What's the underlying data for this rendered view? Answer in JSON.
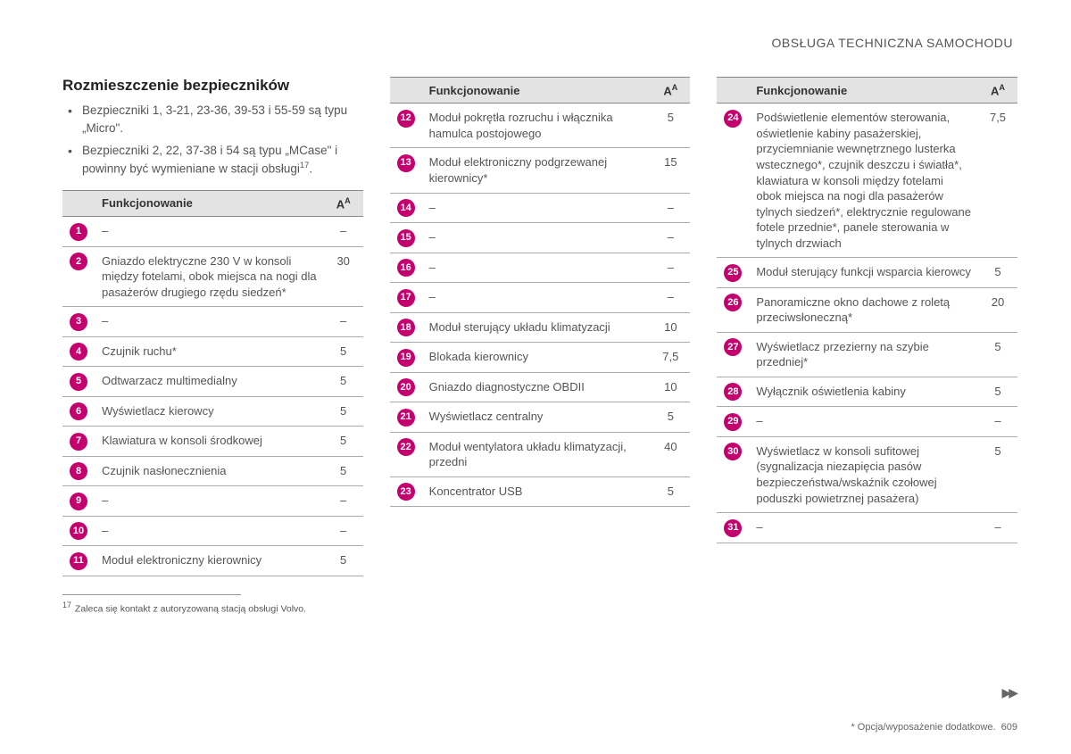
{
  "header": "OBSŁUGA TECHNICZNA SAMOCHODU",
  "section_title": "Rozmieszczenie bezpieczników",
  "bullets": [
    "Bezpieczniki 1, 3-21, 23-36, 39-53 i 55-59 są typu „Micro\".",
    "Bezpieczniki 2, 22, 37-38 i 54 są typu „MCase\" i powinny być wymieniane w stacji obsługi"
  ],
  "bullet2_sup": "17",
  "bullet2_tail": ".",
  "th_func": "Funkcjonowanie",
  "th_amp": "A",
  "th_amp_sup": "A",
  "col1_rows": [
    {
      "n": "1",
      "desc": "–",
      "amp": "–"
    },
    {
      "n": "2",
      "desc": "Gniazdo elektryczne 230 V w konsoli między fotelami, obok miejsca na nogi dla pasażerów drugiego rzędu siedzeń*",
      "amp": "30"
    },
    {
      "n": "3",
      "desc": "–",
      "amp": "–"
    },
    {
      "n": "4",
      "desc": "Czujnik ruchu*",
      "amp": "5"
    },
    {
      "n": "5",
      "desc": "Odtwarzacz multimedialny",
      "amp": "5"
    },
    {
      "n": "6",
      "desc": "Wyświetlacz kierowcy",
      "amp": "5"
    },
    {
      "n": "7",
      "desc": "Klawiatura w konsoli środkowej",
      "amp": "5"
    },
    {
      "n": "8",
      "desc": "Czujnik nasłonecznienia",
      "amp": "5"
    },
    {
      "n": "9",
      "desc": "–",
      "amp": "–"
    },
    {
      "n": "10",
      "desc": "–",
      "amp": "–"
    },
    {
      "n": "11",
      "desc": "Moduł elektroniczny kierownicy",
      "amp": "5"
    }
  ],
  "col2_rows": [
    {
      "n": "12",
      "desc": "Moduł pokrętła rozruchu i włącznika hamulca postojowego",
      "amp": "5"
    },
    {
      "n": "13",
      "desc": "Moduł elektroniczny podgrzewanej kierownicy*",
      "amp": "15"
    },
    {
      "n": "14",
      "desc": "–",
      "amp": "–"
    },
    {
      "n": "15",
      "desc": "–",
      "amp": "–"
    },
    {
      "n": "16",
      "desc": "–",
      "amp": "–"
    },
    {
      "n": "17",
      "desc": "–",
      "amp": "–"
    },
    {
      "n": "18",
      "desc": "Moduł sterujący układu klimatyzacji",
      "amp": "10"
    },
    {
      "n": "19",
      "desc": "Blokada kierownicy",
      "amp": "7,5"
    },
    {
      "n": "20",
      "desc": "Gniazdo diagnostyczne OBDII",
      "amp": "10"
    },
    {
      "n": "21",
      "desc": "Wyświetlacz centralny",
      "amp": "5"
    },
    {
      "n": "22",
      "desc": "Moduł wentylatora układu klimatyzacji, przedni",
      "amp": "40"
    },
    {
      "n": "23",
      "desc": "Koncentrator USB",
      "amp": "5"
    }
  ],
  "col3_rows": [
    {
      "n": "24",
      "desc": "Podświetlenie elementów sterowania, oświetlenie kabiny pasażerskiej, przyciemnianie wewnętrznego lusterka wstecznego*, czujnik deszczu i światła*, klawiatura w konsoli między fotelami obok miejsca na nogi dla pasażerów tylnych siedzeń*, elektrycznie regulowane fotele przednie*, panele sterowania w tylnych drzwiach",
      "amp": "7,5"
    },
    {
      "n": "25",
      "desc": "Moduł sterujący funkcji wsparcia kierowcy",
      "amp": "5"
    },
    {
      "n": "26",
      "desc": "Panoramiczne okno dachowe z roletą przeciwsłoneczną*",
      "amp": "20"
    },
    {
      "n": "27",
      "desc": "Wyświetlacz przezierny na szybie przedniej*",
      "amp": "5"
    },
    {
      "n": "28",
      "desc": "Wyłącznik oświetlenia kabiny",
      "amp": "5"
    },
    {
      "n": "29",
      "desc": "–",
      "amp": "–"
    },
    {
      "n": "30",
      "desc": "Wyświetlacz w konsoli sufitowej (sygnalizacja niezapięcia pasów bezpieczeństwa/wskaźnik czołowej poduszki powietrznej pasażera)",
      "amp": "5"
    },
    {
      "n": "31",
      "desc": "–",
      "amp": "–"
    }
  ],
  "footnote_sup": "17",
  "footnote_text": "Zaleca się kontakt z autoryzowaną stacją obsługi Volvo.",
  "footer_text": "* Opcja/wyposażenie dodatkowe.",
  "page_num": "609",
  "badge_bg": "#c4006e",
  "badge_fg": "#ffffff"
}
